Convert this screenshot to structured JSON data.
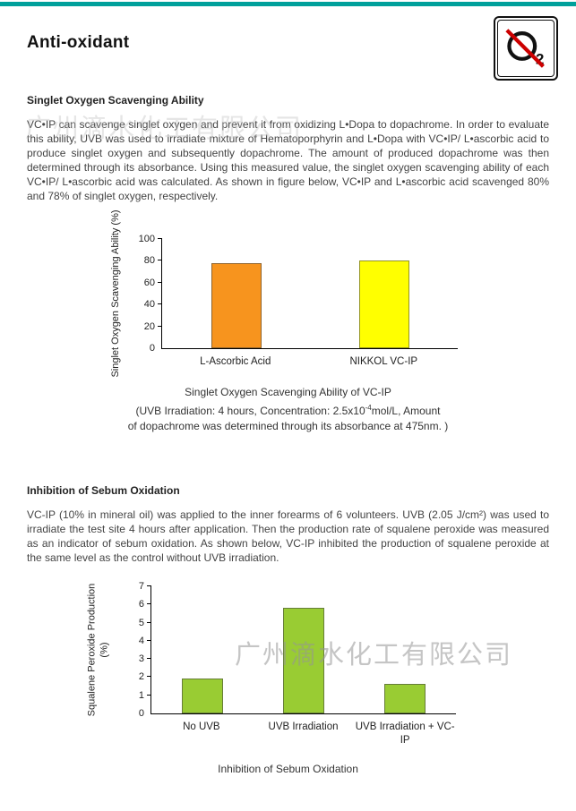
{
  "header": {
    "title": "Anti-oxidant",
    "logo_subscript": "2"
  },
  "colors": {
    "top_bar": "#00A09B",
    "logo_slash_red": "#CC0000",
    "orange_bar": "#F7941E",
    "yellow_bar": "#FFFF00",
    "green_bar": "#99CC33"
  },
  "watermark": {
    "text": "广州滴水化工有限公司"
  },
  "section1": {
    "heading": "Singlet Oxygen Scavenging Ability",
    "body": "VC•IP can scavenge singlet oxygen and prevent it from oxidizing L•Dopa to dopachrome.  In order to evaluate this ability, UVB was used to irradiate mixture of Hematoporphyrin and L•Dopa with VC•IP/ L•ascorbic acid to produce singlet oxygen and subsequently dopachrome.  The amount of produced dopachrome was then determined through its absorbance.  Using this measured value, the singlet oxygen scavenging ability of each VC•IP/ L•ascorbic acid was calculated.  As shown in figure below, VC•IP and L•ascorbic acid scavenged 80% and 78% of singlet oxygen, respectively.",
    "caption": {
      "line1": "Singlet Oxygen Scavenging Ability of VC-IP",
      "line2_pre": "(UVB Irradiation: 4 hours, Concentration: 2.5x10",
      "line2_sup": "-4",
      "line2_post": "mol/L, Amount",
      "line3": "of dopachrome was determined through its absorbance at 475nm. )"
    }
  },
  "section2": {
    "heading": "Inhibition of Sebum Oxidation",
    "body": "VC-IP (10% in mineral oil) was applied to the inner forearms of 6 volunteers. UVB (2.05 J/cm²) was used to irradiate the test site 4 hours after application.  Then the production rate of squalene peroxide was measured as an indicator of sebum oxidation.  As shown below, VC-IP inhibited the production of squalene peroxide at the same level as the control without UVB irradiation.",
    "caption": "Inhibition of Sebum Oxidation"
  },
  "chart_data": [
    {
      "type": "bar",
      "categories": [
        "L-Ascorbic Acid",
        "NIKKOL VC-IP"
      ],
      "values": [
        78,
        80
      ],
      "colors": [
        "#F7941E",
        "#FFFF00"
      ],
      "title": "Singlet Oxygen Scavenging Ability of VC-IP",
      "xlabel": "",
      "ylabel": "Singlet Oxygen Scavenging Ability (%)",
      "ylim": [
        0,
        100
      ],
      "yticks": [
        0,
        20,
        40,
        60,
        80,
        100
      ],
      "grid": false,
      "legend": false
    },
    {
      "type": "bar",
      "categories": [
        "No UVB",
        "UVB Irradiation",
        "UVB Irradiation + VC-IP"
      ],
      "values": [
        1.9,
        5.8,
        1.6
      ],
      "colors": [
        "#99CC33",
        "#99CC33",
        "#99CC33"
      ],
      "title": "Inhibition of Sebum Oxidation",
      "xlabel": "",
      "ylabel": "Squalene Peroxide Production (%)",
      "ylim": [
        0,
        7
      ],
      "yticks": [
        0,
        1,
        2,
        3,
        4,
        5,
        6,
        7
      ],
      "grid": false,
      "legend": false
    }
  ]
}
